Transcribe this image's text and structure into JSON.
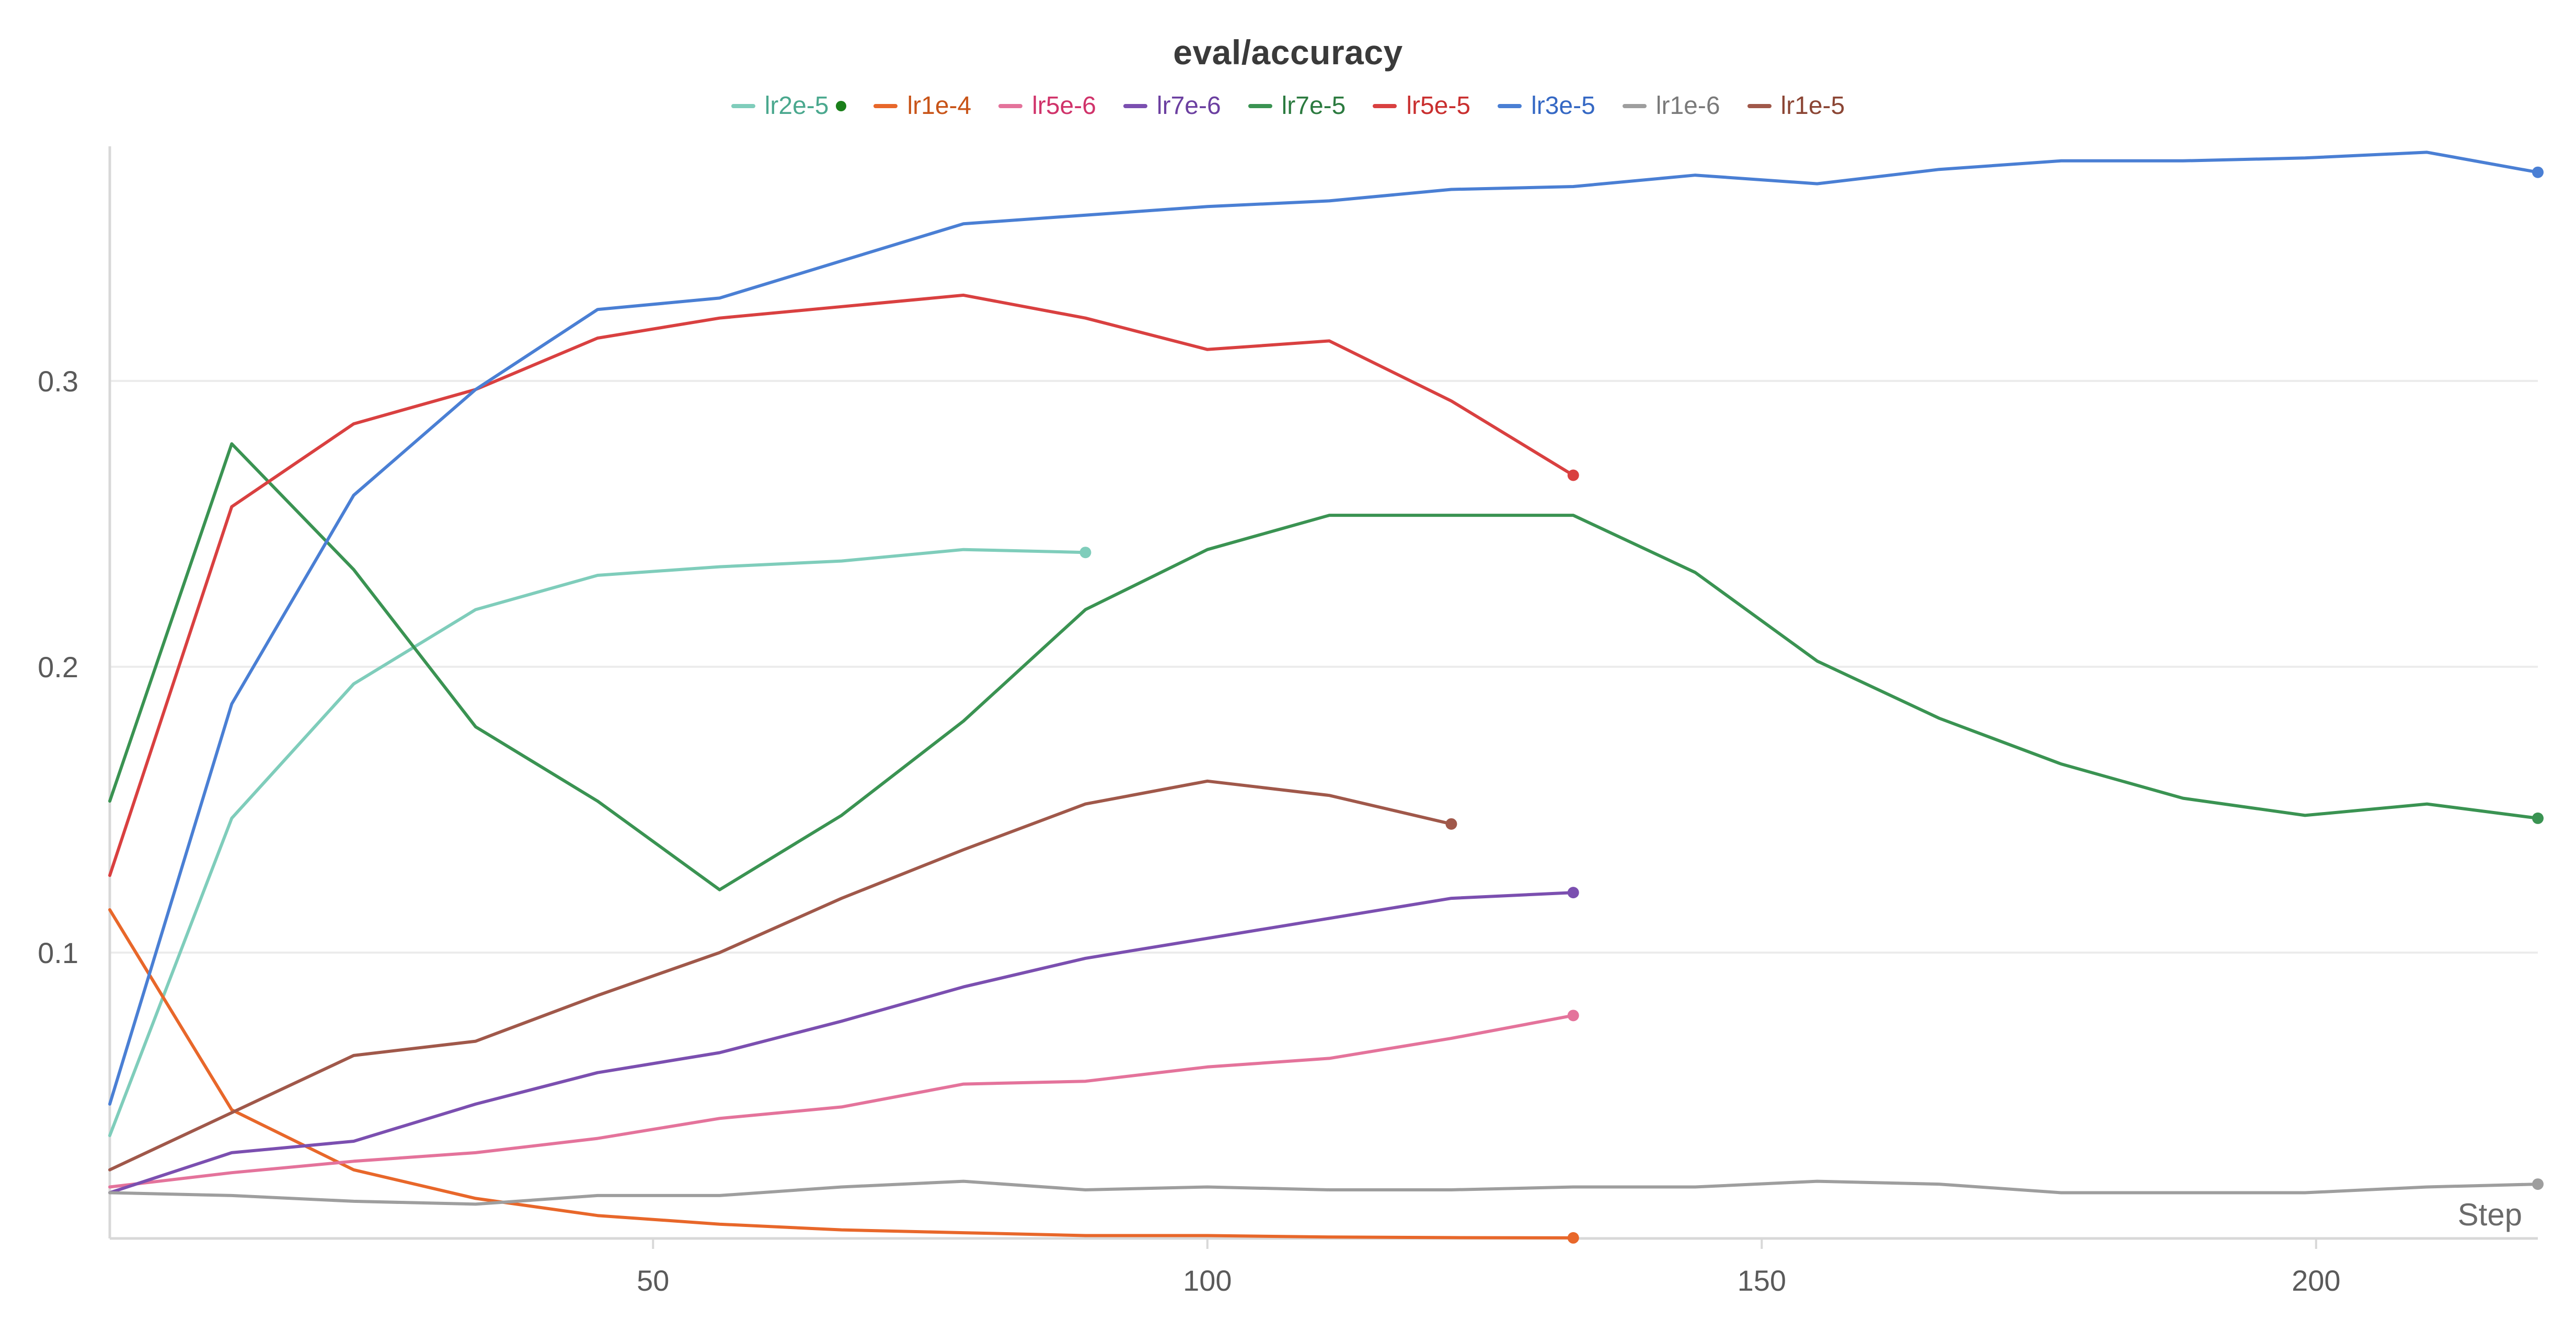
{
  "chart_data": {
    "type": "line",
    "title": "eval/accuracy",
    "xlabel": "Step",
    "ylabel": "",
    "xlim": [
      1,
      220
    ],
    "ylim": [
      0,
      0.378
    ],
    "xticks": [
      50,
      100,
      150,
      200
    ],
    "yticks": [
      0.1,
      0.2,
      0.3
    ],
    "xtick_labels": [
      "50",
      "100",
      "150",
      "200"
    ],
    "ytick_labels": [
      "0.1",
      "0.2",
      "0.3"
    ],
    "grid": true,
    "legend_position": "top-center",
    "series": [
      {
        "name": "lr2e-5",
        "color": "#7fcdbb",
        "label_color": "#4aa88e",
        "highlight_marker": true,
        "x": [
          1,
          12,
          23,
          34,
          45,
          56,
          67,
          78,
          89
        ],
        "y": [
          0.036,
          0.147,
          0.194,
          0.22,
          0.232,
          0.235,
          0.237,
          0.241,
          0.24
        ]
      },
      {
        "name": "lr1e-4",
        "color": "#e8672a",
        "label_color": "#c85418",
        "x": [
          1,
          12,
          23,
          34,
          45,
          56,
          67,
          78,
          89,
          100,
          111,
          122,
          133
        ],
        "y": [
          0.115,
          0.045,
          0.024,
          0.014,
          0.008,
          0.005,
          0.003,
          0.002,
          0.001,
          0.001,
          0.0005,
          0.0003,
          0.0002
        ]
      },
      {
        "name": "lr5e-6",
        "color": "#e4739b",
        "label_color": "#d0336a",
        "x": [
          1,
          12,
          23,
          34,
          45,
          56,
          67,
          78,
          89,
          100,
          111,
          122,
          133
        ],
        "y": [
          0.018,
          0.023,
          0.027,
          0.03,
          0.035,
          0.042,
          0.046,
          0.054,
          0.055,
          0.06,
          0.063,
          0.07,
          0.078
        ]
      },
      {
        "name": "lr7e-6",
        "color": "#7b4fb0",
        "label_color": "#6b3fa0",
        "x": [
          1,
          12,
          23,
          34,
          45,
          56,
          67,
          78,
          89,
          100,
          111,
          122,
          133
        ],
        "y": [
          0.016,
          0.03,
          0.034,
          0.047,
          0.058,
          0.065,
          0.076,
          0.088,
          0.098,
          0.105,
          0.112,
          0.119,
          0.121
        ]
      },
      {
        "name": "lr7e-5",
        "color": "#3a9352",
        "label_color": "#2b7a3f",
        "x": [
          1,
          12,
          23,
          34,
          45,
          56,
          67,
          78,
          89,
          100,
          111,
          122,
          133,
          144,
          155,
          166,
          177,
          188,
          199,
          210,
          220
        ],
        "y": [
          0.153,
          0.278,
          0.234,
          0.179,
          0.153,
          0.122,
          0.148,
          0.181,
          0.22,
          0.241,
          0.253,
          0.253,
          0.253,
          0.233,
          0.202,
          0.182,
          0.166,
          0.154,
          0.148,
          0.152,
          0.147
        ]
      },
      {
        "name": "lr5e-5",
        "color": "#d94040",
        "label_color": "#c92f2f",
        "x": [
          1,
          12,
          23,
          34,
          45,
          56,
          67,
          78,
          89,
          100,
          111,
          122,
          133
        ],
        "y": [
          0.127,
          0.256,
          0.285,
          0.297,
          0.315,
          0.322,
          0.326,
          0.33,
          0.322,
          0.311,
          0.314,
          0.293,
          0.267
        ]
      },
      {
        "name": "lr3e-5",
        "color": "#4a7fd4",
        "label_color": "#3568c4",
        "x": [
          1,
          12,
          23,
          34,
          45,
          56,
          67,
          78,
          89,
          100,
          111,
          122,
          133,
          144,
          155,
          166,
          177,
          188,
          199,
          210,
          220
        ],
        "y": [
          0.047,
          0.187,
          0.26,
          0.297,
          0.325,
          0.329,
          0.342,
          0.355,
          0.358,
          0.361,
          0.363,
          0.367,
          0.368,
          0.372,
          0.369,
          0.374,
          0.377,
          0.377,
          0.378,
          0.38,
          0.373
        ]
      },
      {
        "name": "lr1e-6",
        "color": "#9e9e9e",
        "label_color": "#7a7a7a",
        "x": [
          1,
          12,
          23,
          34,
          45,
          56,
          67,
          78,
          89,
          100,
          111,
          122,
          133,
          144,
          155,
          166,
          177,
          188,
          199,
          210,
          220
        ],
        "y": [
          0.016,
          0.015,
          0.013,
          0.012,
          0.015,
          0.015,
          0.018,
          0.02,
          0.017,
          0.018,
          0.017,
          0.017,
          0.018,
          0.018,
          0.02,
          0.019,
          0.016,
          0.016,
          0.016,
          0.018,
          0.019
        ]
      },
      {
        "name": "lr1e-5",
        "color": "#a0584a",
        "label_color": "#8b4534",
        "x": [
          1,
          12,
          23,
          34,
          45,
          56,
          67,
          78,
          89,
          100,
          111,
          122
        ],
        "y": [
          0.024,
          0.044,
          0.064,
          0.069,
          0.085,
          0.1,
          0.119,
          0.136,
          0.152,
          0.16,
          0.155,
          0.145
        ]
      }
    ]
  }
}
